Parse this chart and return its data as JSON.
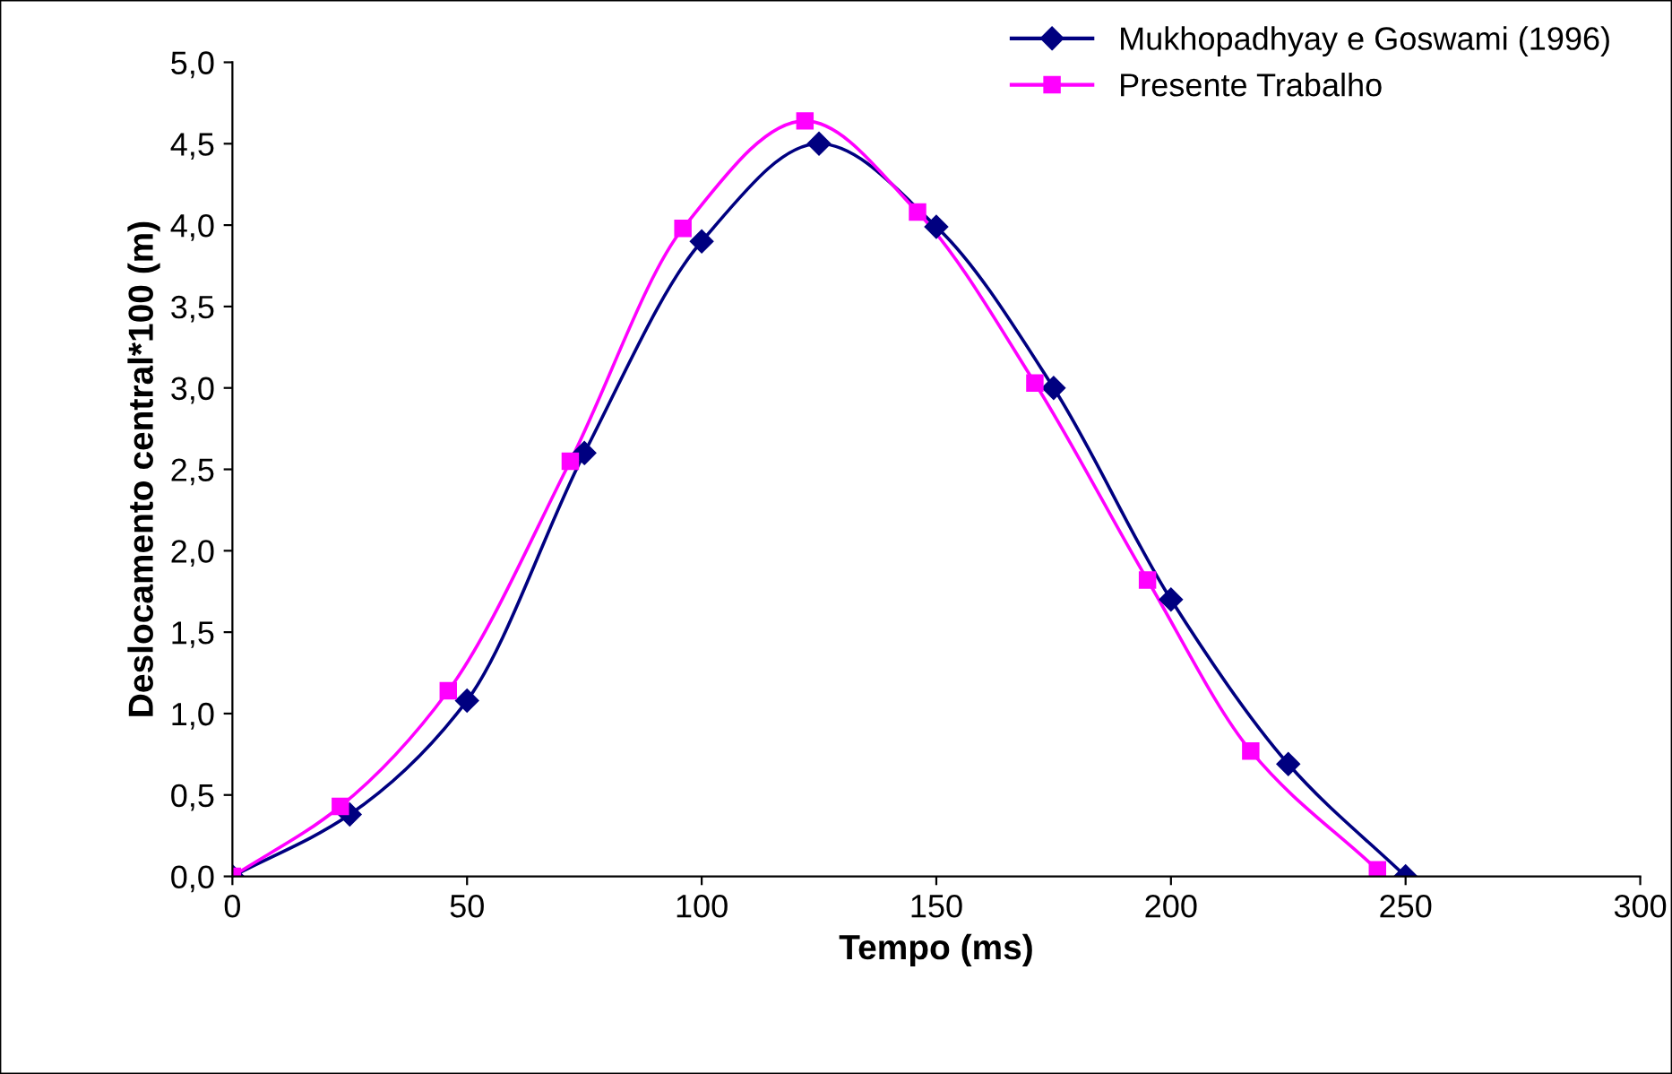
{
  "chart_data": {
    "type": "line",
    "xlabel": "Tempo (ms)",
    "ylabel": "Deslocamento central*100 (m)",
    "xlim": [
      0,
      300
    ],
    "xticks": [
      0,
      50,
      100,
      150,
      200,
      250,
      300
    ],
    "ylim": [
      0,
      5
    ],
    "yticks": [
      {
        "value": 0,
        "label": "0,0"
      },
      {
        "value": 0.5,
        "label": "0,5"
      },
      {
        "value": 1,
        "label": "1,0"
      },
      {
        "value": 1.5,
        "label": "1,5"
      },
      {
        "value": 2,
        "label": "2,0"
      },
      {
        "value": 2.5,
        "label": "2,5"
      },
      {
        "value": 3,
        "label": "3,0"
      },
      {
        "value": 3.5,
        "label": "3,5"
      },
      {
        "value": 4,
        "label": "4,0"
      },
      {
        "value": 4.5,
        "label": "4,5"
      },
      {
        "value": 5,
        "label": "5,0"
      }
    ],
    "grid": false,
    "legend": "top right",
    "series": [
      {
        "name": "Mukhopadhyay e Goswami (1996)",
        "color": "#000080",
        "marker": "diamond",
        "x": [
          0,
          25,
          50,
          75,
          100,
          125,
          150,
          175,
          200,
          225,
          250
        ],
        "values": [
          0,
          0.38,
          1.08,
          2.6,
          3.9,
          4.5,
          3.99,
          3.0,
          1.7,
          0.69,
          0.0
        ]
      },
      {
        "name": "Presente Trabalho",
        "color": "#ff00ff",
        "marker": "square",
        "x": [
          0,
          23,
          46,
          72,
          96,
          122,
          146,
          171,
          195,
          217,
          244
        ],
        "values": [
          0,
          0.43,
          1.14,
          2.55,
          3.98,
          4.64,
          4.08,
          3.03,
          1.82,
          0.77,
          0.04
        ]
      }
    ]
  }
}
